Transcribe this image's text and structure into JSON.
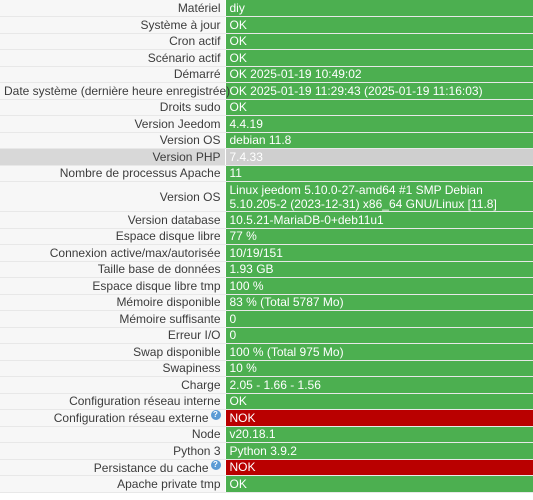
{
  "rows": [
    {
      "label": "Matériel",
      "value": "diy",
      "status": "ok"
    },
    {
      "label": "Système à jour",
      "value": "OK",
      "status": "ok"
    },
    {
      "label": "Cron actif",
      "value": "OK",
      "status": "ok"
    },
    {
      "label": "Scénario actif",
      "value": "OK",
      "status": "ok"
    },
    {
      "label": "Démarré",
      "value": "OK 2025-01-19 10:49:02",
      "status": "ok"
    },
    {
      "label": "Date système (dernière heure enregistrée)",
      "value": "OK 2025-01-19 11:29:43 (2025-01-19 11:16:03)",
      "status": "ok"
    },
    {
      "label": "Droits sudo",
      "value": "OK",
      "status": "ok"
    },
    {
      "label": "Version Jeedom",
      "value": "4.4.19",
      "status": "ok"
    },
    {
      "label": "Version OS",
      "value": "debian 11.8",
      "status": "ok"
    },
    {
      "label": "Version PHP",
      "value": "7.4.33",
      "status": "grey"
    },
    {
      "label": "Nombre de processus Apache",
      "value": "11",
      "status": "ok"
    },
    {
      "label": "Version OS",
      "value": "Linux jeedom 5.10.0-27-amd64 #1 SMP Debian 5.10.205-2 (2023-12-31) x86_64 GNU/Linux [11.8]",
      "status": "ok"
    },
    {
      "label": "Version database",
      "value": "10.5.21-MariaDB-0+deb11u1",
      "status": "ok"
    },
    {
      "label": "Espace disque libre",
      "value": "77 %",
      "status": "ok"
    },
    {
      "label": "Connexion active/max/autorisée",
      "value": "10/19/151",
      "status": "ok"
    },
    {
      "label": "Taille base de données",
      "value": "1.93 GB",
      "status": "ok"
    },
    {
      "label": "Espace disque libre tmp",
      "value": "100 %",
      "status": "ok"
    },
    {
      "label": "Mémoire disponible",
      "value": "83 % (Total 5787 Mo)",
      "status": "ok"
    },
    {
      "label": "Mémoire suffisante",
      "value": "0",
      "status": "ok"
    },
    {
      "label": "Erreur I/O",
      "value": "0",
      "status": "ok"
    },
    {
      "label": "Swap disponible",
      "value": "100 % (Total 975 Mo)",
      "status": "ok"
    },
    {
      "label": "Swapiness",
      "value": "10 %",
      "status": "ok"
    },
    {
      "label": "Charge",
      "value": "2.05 - 1.66 - 1.56",
      "status": "ok"
    },
    {
      "label": "Configuration réseau interne",
      "value": "OK",
      "status": "ok"
    },
    {
      "label": "Configuration réseau externe",
      "value": "NOK",
      "status": "nok"
    },
    {
      "label": "Node",
      "value": "v20.18.1",
      "status": "ok"
    },
    {
      "label": "Python 3",
      "value": "Python 3.9.2",
      "status": "ok"
    },
    {
      "label": "Persistance du cache",
      "value": "NOK",
      "status": "nok"
    },
    {
      "label": "Apache private tmp",
      "value": "OK",
      "status": "ok"
    }
  ],
  "help_icon": {
    "glyph": "?",
    "icon": "question-circle-icon"
  },
  "colors": {
    "ok": "#4caf50",
    "nok": "#b90000",
    "grey": "#cfcfcf"
  }
}
